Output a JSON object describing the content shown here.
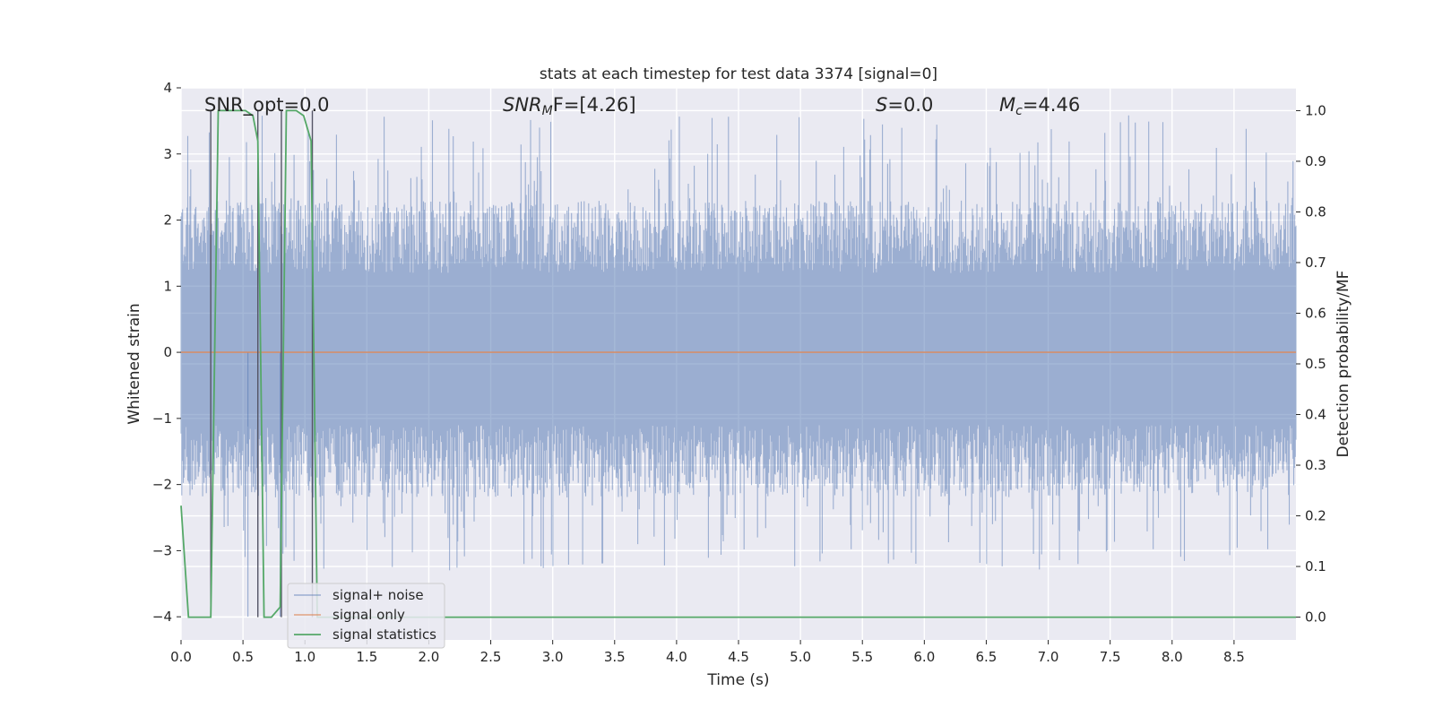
{
  "chart_data": {
    "type": "line",
    "title": "stats at each timestep for test data 3374 [signal=0]",
    "xlabel": "Time (s)",
    "ylabel": "Whitened strain",
    "y2label": "Detection probability/MF",
    "xlim": [
      0.0,
      9.0
    ],
    "ylim": [
      -4.35,
      4.0
    ],
    "y2lim": [
      -0.045,
      1.045
    ],
    "xticks": [
      "0.0",
      "0.5",
      "1.0",
      "1.5",
      "2.0",
      "2.5",
      "3.0",
      "3.5",
      "4.0",
      "4.5",
      "5.0",
      "5.5",
      "6.0",
      "6.5",
      "7.0",
      "7.5",
      "8.0",
      "8.5"
    ],
    "yticks": [
      "4",
      "3",
      "2",
      "1",
      "0",
      "−1",
      "−2",
      "−3",
      "−4"
    ],
    "y2ticks": [
      "1.0",
      "0.9",
      "0.8",
      "0.7",
      "0.6",
      "0.5",
      "0.4",
      "0.3",
      "0.2",
      "0.1",
      "0.0"
    ],
    "annotations": {
      "snr_opt": "SNR_opt=0.0",
      "snr_mf_sym": "SNR",
      "snr_mf_sub": "M",
      "snr_mf_rest": "F=[4.26]",
      "s_sym": "S",
      "s_rest": "=0.0",
      "mc_sym": "M",
      "mc_sub": "c",
      "mc_rest": "=4.46"
    },
    "legend": {
      "position": "lower-left",
      "entries": [
        "signal+ noise",
        "signal only",
        "signal statistics"
      ]
    },
    "series": [
      {
        "name": "signal+ noise",
        "color": "#4c72b0",
        "kind": "noise",
        "typical_range": [
          -2.3,
          2.3
        ],
        "extreme_range": [
          -4.0,
          3.6
        ]
      },
      {
        "name": "signal only",
        "color": "#dd8452",
        "values_const": 0.0
      },
      {
        "name": "signal statistics",
        "color": "#55a868",
        "axis": "right",
        "x": [
          0.0,
          0.06,
          0.24,
          0.3,
          0.52,
          0.58,
          0.62,
          0.67,
          0.73,
          0.8,
          0.85,
          0.93,
          0.99,
          1.05,
          1.1,
          1.15,
          9.0
        ],
        "y": [
          0.22,
          0.0,
          0.0,
          1.0,
          1.0,
          0.99,
          0.94,
          0.0,
          0.0,
          0.02,
          1.0,
          1.0,
          0.99,
          0.94,
          0.0,
          0.0,
          0.0
        ]
      }
    ],
    "event_markers_x": [
      0.24,
      0.62,
      0.81,
      1.06
    ],
    "grid": true
  }
}
